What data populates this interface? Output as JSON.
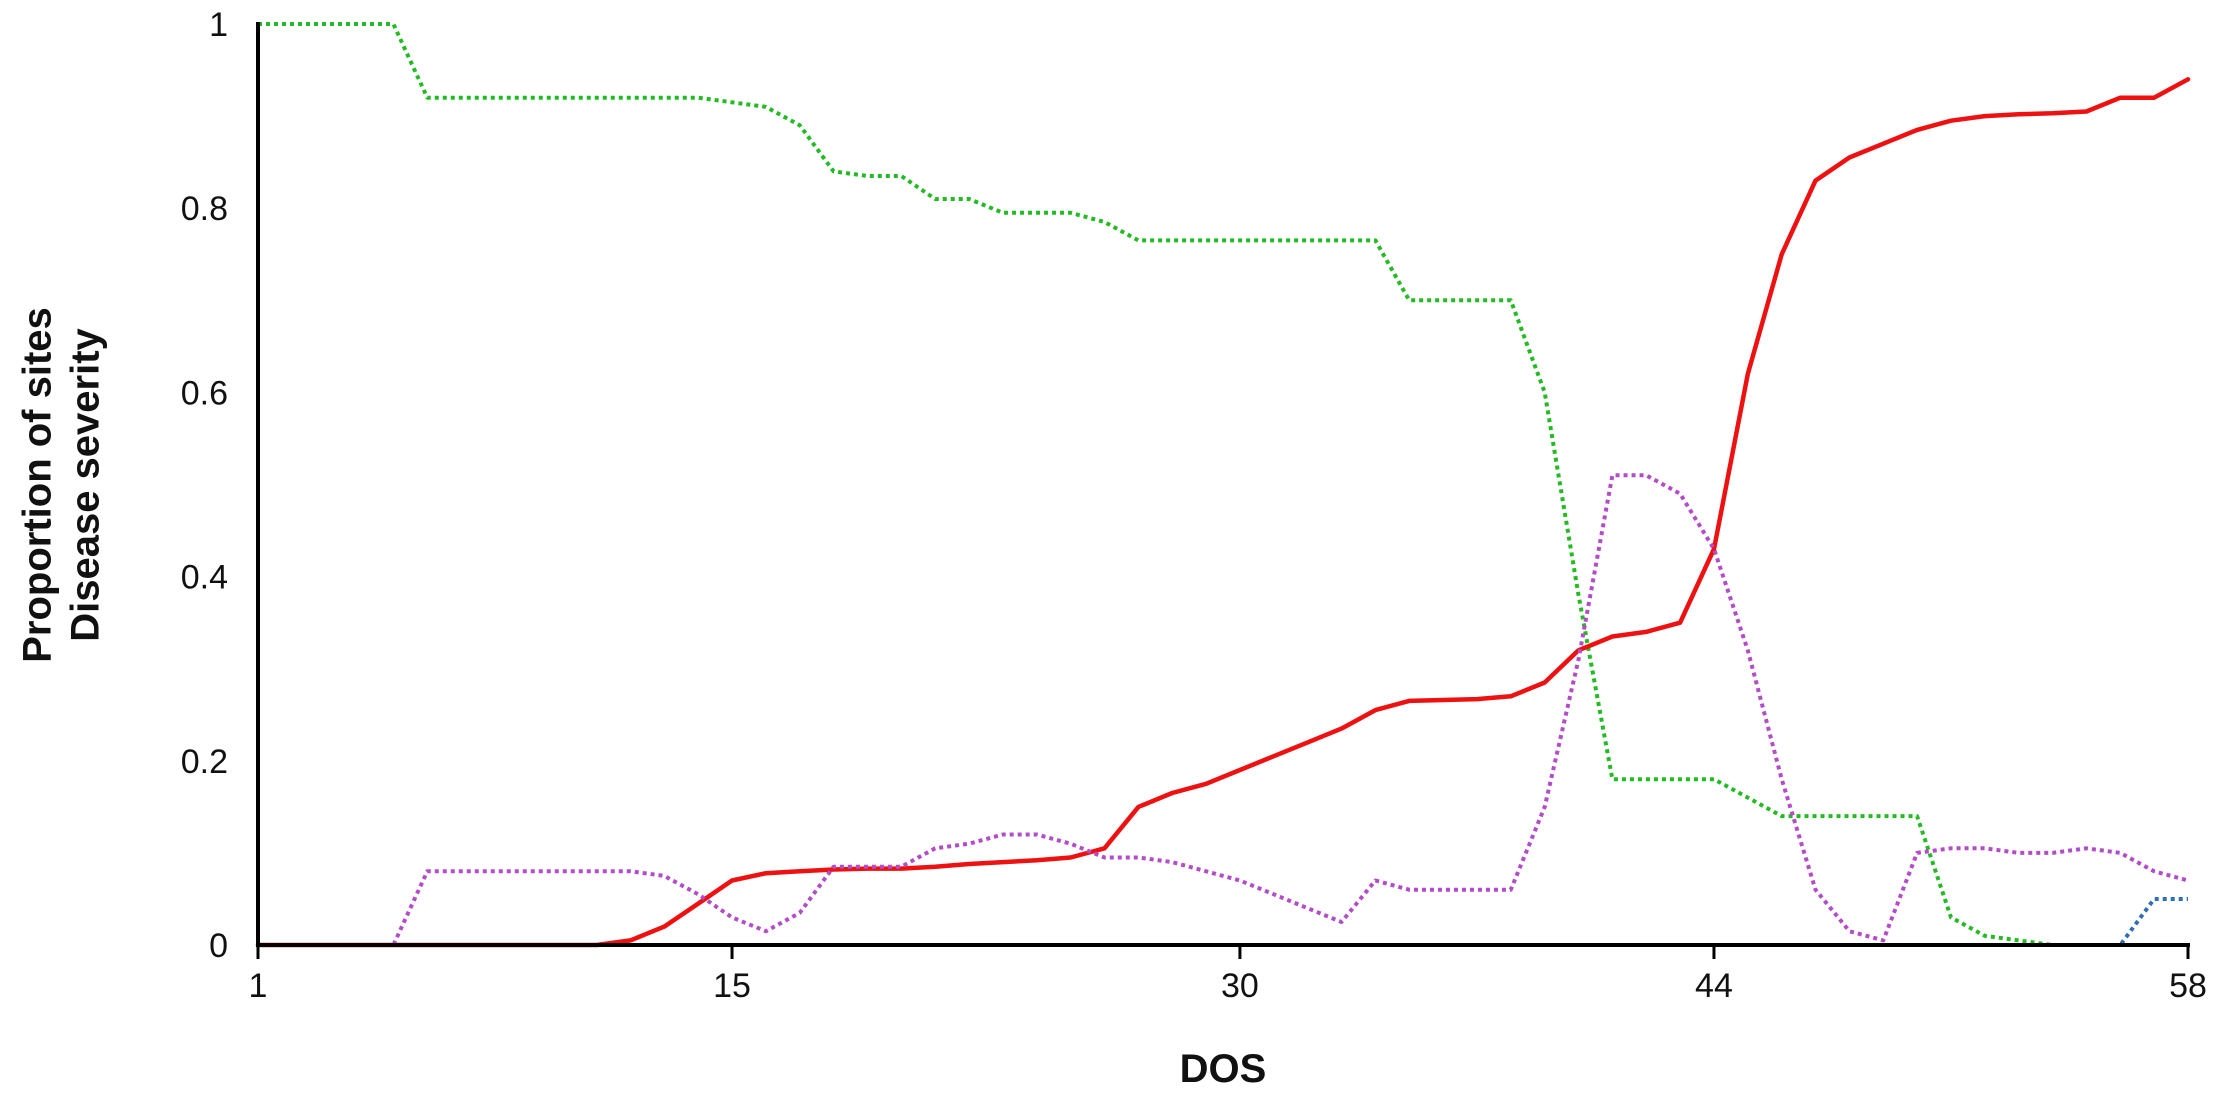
{
  "chart_data": {
    "type": "line",
    "title": "",
    "xlabel": "DOS",
    "ylabel_lines": [
      "Proportion of sites",
      "Disease severity"
    ],
    "x_ticks": [
      1,
      15,
      30,
      44,
      58
    ],
    "y_ticks": [
      0,
      0.2,
      0.4,
      0.6,
      0.8,
      1
    ],
    "y_tick_labels": [
      "0",
      "0.2",
      "0.4",
      "0.6",
      "0.8",
      "1"
    ],
    "xlim": [
      1,
      58
    ],
    "ylim": [
      0,
      1
    ],
    "grid": false,
    "legend": "none",
    "series": [
      {
        "color": "#22bb22",
        "style": "dotted",
        "x": [
          1,
          5,
          6,
          13,
          14,
          15,
          16,
          17,
          18,
          19,
          20,
          21,
          22,
          23,
          24,
          25,
          26,
          27,
          28,
          29,
          30,
          31,
          32,
          33,
          34,
          35,
          36,
          37,
          38,
          39,
          40,
          41,
          42,
          43,
          44,
          45,
          46,
          47,
          48,
          49,
          50,
          51,
          52,
          53,
          54,
          55,
          56,
          57,
          58
        ],
        "y": [
          1.0,
          1.0,
          0.92,
          0.92,
          0.92,
          0.915,
          0.91,
          0.89,
          0.84,
          0.835,
          0.835,
          0.81,
          0.81,
          0.795,
          0.795,
          0.795,
          0.785,
          0.765,
          0.765,
          0.765,
          0.765,
          0.765,
          0.765,
          0.765,
          0.765,
          0.7,
          0.7,
          0.7,
          0.7,
          0.6,
          0.38,
          0.18,
          0.18,
          0.18,
          0.18,
          0.16,
          0.14,
          0.14,
          0.14,
          0.14,
          0.14,
          0.03,
          0.01,
          0.005,
          0.0,
          0.0,
          0.0,
          0.0,
          0.0
        ]
      },
      {
        "color": "#ee1111",
        "style": "solid",
        "x": [
          1,
          11,
          12,
          13,
          14,
          15,
          16,
          17,
          18,
          19,
          20,
          21,
          22,
          23,
          24,
          25,
          26,
          27,
          28,
          29,
          30,
          31,
          32,
          33,
          34,
          35,
          36,
          37,
          38,
          39,
          40,
          41,
          42,
          43,
          44,
          45,
          46,
          47,
          48,
          49,
          50,
          51,
          52,
          53,
          54,
          55,
          56,
          57,
          58
        ],
        "y": [
          0.0,
          0.0,
          0.005,
          0.02,
          0.045,
          0.07,
          0.078,
          0.08,
          0.082,
          0.083,
          0.083,
          0.085,
          0.088,
          0.09,
          0.092,
          0.095,
          0.105,
          0.15,
          0.165,
          0.175,
          0.19,
          0.205,
          0.22,
          0.235,
          0.255,
          0.265,
          0.266,
          0.267,
          0.27,
          0.285,
          0.32,
          0.335,
          0.34,
          0.35,
          0.43,
          0.62,
          0.75,
          0.83,
          0.855,
          0.87,
          0.885,
          0.895,
          0.9,
          0.902,
          0.903,
          0.905,
          0.92,
          0.92,
          0.94
        ]
      },
      {
        "color": "#b44bc8",
        "style": "dotted",
        "x": [
          1,
          5,
          6,
          7,
          8,
          9,
          10,
          11,
          12,
          13,
          14,
          15,
          16,
          17,
          18,
          19,
          20,
          21,
          22,
          23,
          24,
          25,
          26,
          27,
          28,
          29,
          30,
          31,
          32,
          33,
          34,
          35,
          36,
          37,
          38,
          39,
          40,
          41,
          42,
          43,
          44,
          45,
          46,
          47,
          48,
          49,
          50,
          51,
          52,
          53,
          54,
          55,
          56,
          57,
          58
        ],
        "y": [
          0.0,
          0.0,
          0.08,
          0.08,
          0.08,
          0.08,
          0.08,
          0.08,
          0.08,
          0.075,
          0.055,
          0.03,
          0.015,
          0.035,
          0.085,
          0.085,
          0.085,
          0.105,
          0.11,
          0.12,
          0.12,
          0.11,
          0.095,
          0.095,
          0.09,
          0.08,
          0.07,
          0.055,
          0.04,
          0.025,
          0.07,
          0.06,
          0.06,
          0.06,
          0.06,
          0.15,
          0.31,
          0.51,
          0.51,
          0.49,
          0.43,
          0.32,
          0.18,
          0.06,
          0.015,
          0.005,
          0.1,
          0.105,
          0.105,
          0.1,
          0.1,
          0.105,
          0.1,
          0.08,
          0.07
        ]
      },
      {
        "color": "#2f6fb5",
        "style": "dotted",
        "x": [
          1,
          55,
          56,
          57,
          58
        ],
        "y": [
          0.0,
          0.0,
          0.0,
          0.05,
          0.05
        ]
      },
      {
        "color": "#222222",
        "style": "dotted",
        "x": [
          1,
          58
        ],
        "y": [
          0.0,
          0.0
        ]
      }
    ]
  }
}
